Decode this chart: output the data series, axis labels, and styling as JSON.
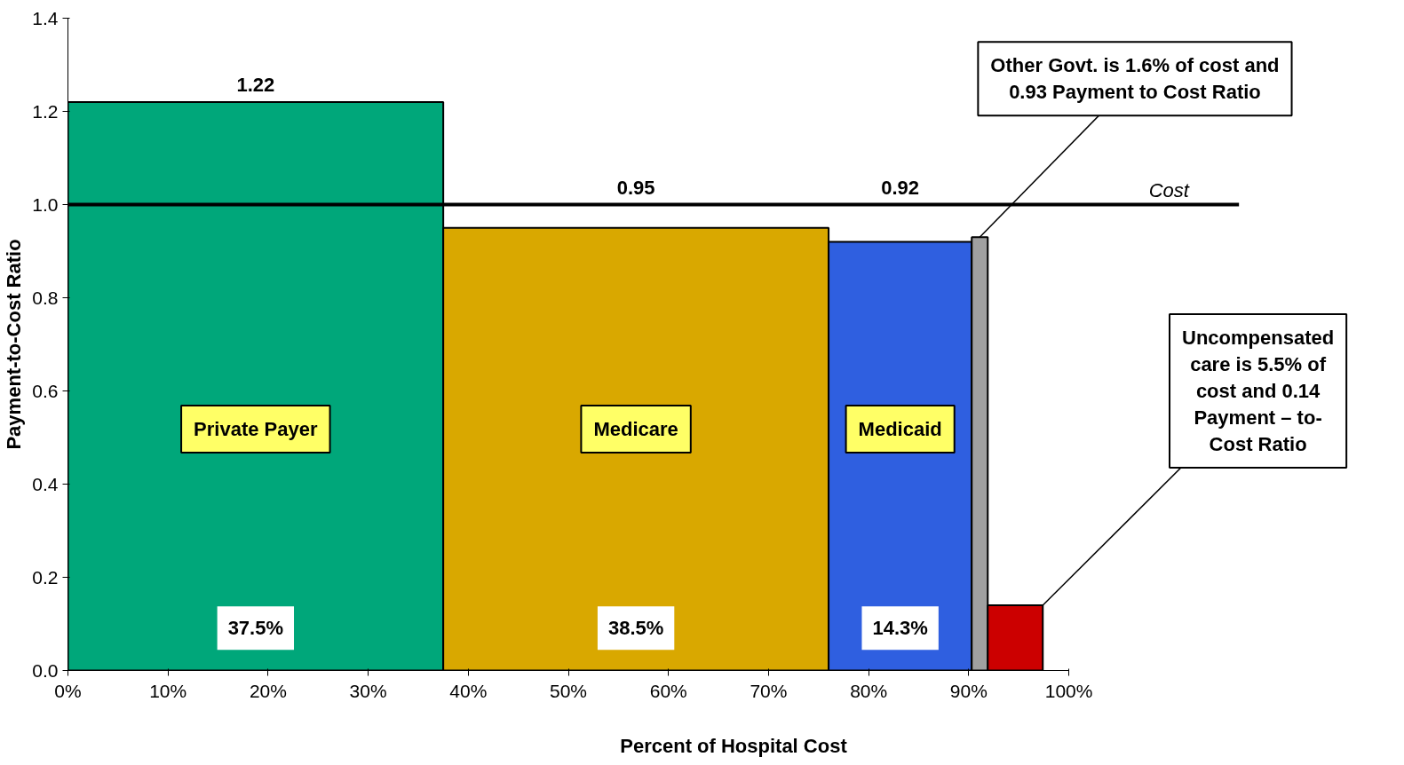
{
  "chart_data": {
    "type": "histogram",
    "xlabel": "Percent of Hospital Cost",
    "ylabel": "Payment-to-Cost Ratio",
    "bins": [
      0,
      37.5,
      76,
      90.3,
      91.9,
      97.4
    ],
    "values": [
      1.22,
      0.95,
      0.92,
      0.93,
      0.14
    ],
    "colors": [
      "#00a77a",
      "#d9a800",
      "#2f5fe0",
      "#a0a0a0",
      "#cc0000"
    ],
    "value_labels": [
      "1.22",
      "0.95",
      "0.92",
      null,
      null
    ],
    "xlim": [
      0,
      100
    ],
    "xticks": [
      {
        "value": 0,
        "label": "0%"
      },
      {
        "value": 10,
        "label": "10%"
      },
      {
        "value": 20,
        "label": "20%"
      },
      {
        "value": 30,
        "label": "30%"
      },
      {
        "value": 40,
        "label": "40%"
      },
      {
        "value": 50,
        "label": "50%"
      },
      {
        "value": 60,
        "label": "60%"
      },
      {
        "value": 70,
        "label": "70%"
      },
      {
        "value": 80,
        "label": "80%"
      },
      {
        "value": 90,
        "label": "90%"
      },
      {
        "value": 100,
        "label": "100%"
      }
    ],
    "ylim": [
      0,
      1.4
    ],
    "yticks": [
      {
        "value": 0,
        "label": "0.0"
      },
      {
        "value": 0.2,
        "label": "0.2"
      },
      {
        "value": 0.4,
        "label": "0.4"
      },
      {
        "value": 0.6,
        "label": "0.6"
      },
      {
        "value": 0.8,
        "label": "0.8"
      },
      {
        "value": 1,
        "label": "1.0"
      },
      {
        "value": 1.2,
        "label": "1.2"
      },
      {
        "value": 1.4,
        "label": "1.4"
      }
    ],
    "ref_lines": [
      {
        "axis": "y",
        "value": 1,
        "label": "Cost",
        "color": "#000000"
      }
    ],
    "annotations": [
      "Private Payer",
      "Medicare",
      "Medicaid",
      "37.5%",
      "38.5%",
      "14.3%",
      {
        "text": "Other Govt. is 1.6% of cost and\n0.93 Payment to Cost Ratio",
        "x": 91.1,
        "y": 0.93
      },
      {
        "text": "Uncompensated\ncare is 5.5% of\ncost and 0.14\nPayment – to-\nCost Ratio",
        "x": 97.4,
        "y": 0.14
      }
    ],
    "grid": false
  }
}
